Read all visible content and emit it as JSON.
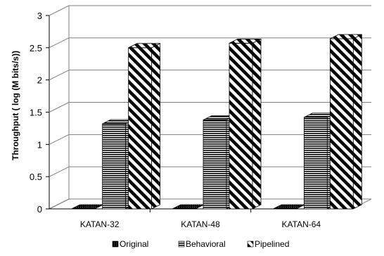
{
  "chart_data": {
    "type": "bar",
    "style": "3d-clustered",
    "categories": [
      "KATAN-32",
      "KATAN-48",
      "KATAN-64"
    ],
    "series": [
      {
        "name": "Original",
        "values": [
          0.0,
          0.0,
          0.0
        ],
        "pattern": "dark-checker"
      },
      {
        "name": "Behavioral",
        "values": [
          1.32,
          1.38,
          1.42
        ],
        "pattern": "horizontal-lines"
      },
      {
        "name": "Pipelined",
        "values": [
          2.5,
          2.57,
          2.64
        ],
        "pattern": "diagonal-lines"
      }
    ],
    "ylabel": "Throughput  ( log (M bits/s))",
    "xlabel": "",
    "ylim": [
      0,
      3
    ],
    "yticks": [
      "0",
      "0.5",
      "1",
      "1.5",
      "2",
      "2.5",
      "3"
    ],
    "grid": true,
    "legend": "bottom",
    "colors": {
      "ink": "#000000",
      "grid": "#7f7f7f",
      "background": "#ffffff"
    }
  }
}
